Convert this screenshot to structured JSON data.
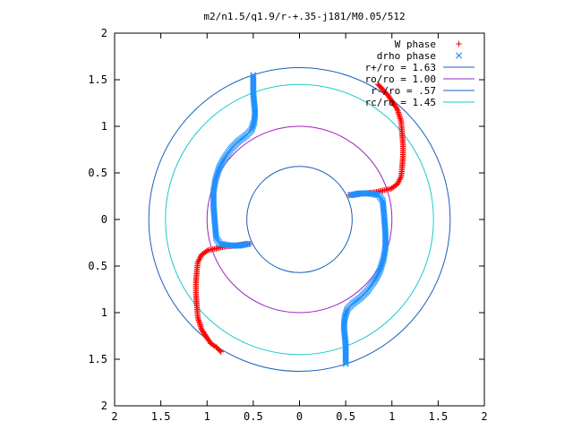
{
  "chart_data": {
    "type": "scatter",
    "title": "m2/n1.5/q1.9/r-+.35-j181/M0.05/512",
    "xlabel": "",
    "ylabel": "",
    "xlim": [
      -2,
      2
    ],
    "ylim": [
      -2,
      2
    ],
    "x_tick_labels": [
      "2",
      "1.5",
      "1",
      "0.5",
      "0",
      "0.5",
      "1",
      "1.5",
      "2"
    ],
    "y_tick_labels": [
      "2",
      "1.5",
      "1",
      "0.5",
      "0",
      "0.5",
      "1",
      "1.5",
      "2"
    ],
    "grid": false,
    "legend_position": "top-right",
    "circles": [
      {
        "label": "r+/ro = 1.63",
        "radius": 1.63,
        "color": "#1a5fbf"
      },
      {
        "label": "ro/ro = 1.00",
        "radius": 1.0,
        "color": "#a020c0"
      },
      {
        "label": "r-/ro = .57",
        "radius": 0.57,
        "color": "#1a5fbf"
      },
      {
        "label": "rc/ro = 1.45",
        "radius": 1.45,
        "color": "#20c8c8"
      }
    ],
    "series": [
      {
        "name": "W phase",
        "marker": "+",
        "color": "#ff0000",
        "points": [
          [
            0.85,
            1.45
          ],
          [
            0.96,
            1.33
          ],
          [
            1.06,
            1.18
          ],
          [
            1.1,
            1.05
          ],
          [
            1.11,
            0.93
          ],
          [
            1.12,
            0.8
          ],
          [
            1.12,
            0.68
          ],
          [
            1.11,
            0.55
          ],
          [
            1.1,
            0.46
          ],
          [
            1.06,
            0.38
          ],
          [
            0.99,
            0.33
          ],
          [
            0.9,
            0.31
          ],
          [
            0.8,
            0.29
          ],
          [
            0.7,
            0.28
          ],
          [
            0.6,
            0.27
          ],
          [
            0.54,
            0.26
          ],
          [
            -0.54,
            -0.26
          ],
          [
            -0.6,
            -0.27
          ],
          [
            -0.7,
            -0.28
          ],
          [
            -0.8,
            -0.29
          ],
          [
            -0.9,
            -0.31
          ],
          [
            -0.99,
            -0.33
          ],
          [
            -1.06,
            -0.38
          ],
          [
            -1.1,
            -0.46
          ],
          [
            -1.11,
            -0.55
          ],
          [
            -1.12,
            -0.68
          ],
          [
            -1.12,
            -0.8
          ],
          [
            -1.11,
            -0.93
          ],
          [
            -1.1,
            -1.05
          ],
          [
            -1.06,
            -1.18
          ],
          [
            -0.96,
            -1.33
          ],
          [
            -0.9,
            -1.37
          ],
          [
            -0.85,
            -1.42
          ]
        ]
      },
      {
        "name": "drho phase",
        "marker": "x",
        "color": "#1e90ff",
        "points": [
          [
            -0.5,
            1.55
          ],
          [
            -0.5,
            1.45
          ],
          [
            -0.5,
            1.35
          ],
          [
            -0.49,
            1.25
          ],
          [
            -0.48,
            1.15
          ],
          [
            -0.49,
            1.05
          ],
          [
            -0.52,
            0.96
          ],
          [
            -0.58,
            0.9
          ],
          [
            -0.66,
            0.84
          ],
          [
            -0.74,
            0.76
          ],
          [
            -0.81,
            0.66
          ],
          [
            -0.87,
            0.55
          ],
          [
            -0.91,
            0.42
          ],
          [
            -0.93,
            0.3
          ],
          [
            -0.93,
            0.15
          ],
          [
            -0.92,
            0.02
          ],
          [
            -0.91,
            -0.1
          ],
          [
            -0.9,
            -0.2
          ],
          [
            -0.86,
            -0.26
          ],
          [
            -0.76,
            -0.28
          ],
          [
            -0.65,
            -0.28
          ],
          [
            -0.55,
            -0.26
          ],
          [
            0.5,
            -1.55
          ],
          [
            0.5,
            -1.45
          ],
          [
            0.5,
            -1.35
          ],
          [
            0.49,
            -1.25
          ],
          [
            0.48,
            -1.15
          ],
          [
            0.49,
            -1.05
          ],
          [
            0.52,
            -0.96
          ],
          [
            0.58,
            -0.9
          ],
          [
            0.66,
            -0.84
          ],
          [
            0.74,
            -0.76
          ],
          [
            0.81,
            -0.66
          ],
          [
            0.87,
            -0.55
          ],
          [
            0.91,
            -0.42
          ],
          [
            0.93,
            -0.3
          ],
          [
            0.93,
            -0.15
          ],
          [
            0.92,
            -0.02
          ],
          [
            0.91,
            0.1
          ],
          [
            0.9,
            0.2
          ],
          [
            0.86,
            0.26
          ],
          [
            0.76,
            0.28
          ],
          [
            0.65,
            0.28
          ],
          [
            0.55,
            0.26
          ]
        ]
      }
    ]
  }
}
